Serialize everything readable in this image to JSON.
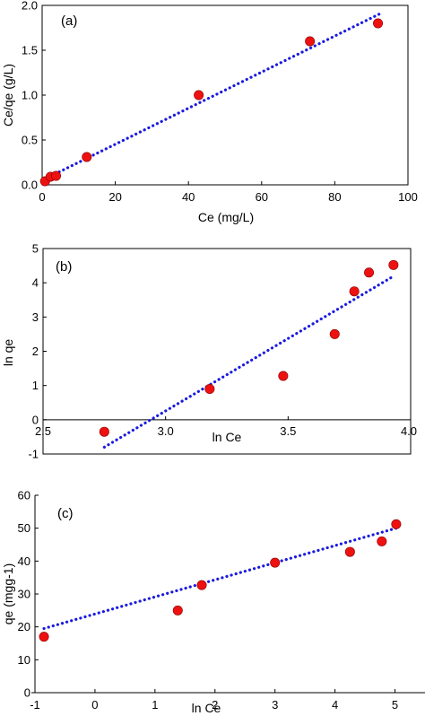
{
  "chart_data": [
    {
      "type": "scatter",
      "panel_label": "(a)",
      "xlabel": "Ce (mg/L)",
      "ylabel": "Ce/qe (g/L)",
      "xlim": [
        0,
        100
      ],
      "ylim": [
        0,
        2.0
      ],
      "xticks": [
        "0",
        "20",
        "40",
        "60",
        "80",
        "100"
      ],
      "yticks": [
        "0.0",
        "0.5",
        "1.0",
        "1.5",
        "2.0"
      ],
      "grid": false,
      "points": [
        {
          "x": 0.8,
          "y": 0.04
        },
        {
          "x": 2.3,
          "y": 0.09
        },
        {
          "x": 3.8,
          "y": 0.1
        },
        {
          "x": 12.2,
          "y": 0.31
        },
        {
          "x": 42.8,
          "y": 1.0
        },
        {
          "x": 73.2,
          "y": 1.6
        },
        {
          "x": 91.8,
          "y": 1.8
        }
      ],
      "fit_line": {
        "x": [
          0,
          93
        ],
        "y": [
          0.05,
          1.92
        ]
      },
      "point_color": "#ee1111",
      "line_color": "#1a1adf"
    },
    {
      "type": "scatter",
      "panel_label": "(b)",
      "xlabel": "ln Ce",
      "ylabel": "ln qe",
      "xlim": [
        2.5,
        4.0
      ],
      "ylim": [
        -1,
        5
      ],
      "xticks": [
        "2.5",
        "3.0",
        "3.5",
        "4.0"
      ],
      "yticks": [
        "-1",
        "0",
        "1",
        "2",
        "3",
        "4",
        "5"
      ],
      "grid": false,
      "points": [
        {
          "x": 2.75,
          "y": -0.35
        },
        {
          "x": 3.18,
          "y": 0.9
        },
        {
          "x": 3.48,
          "y": 1.28
        },
        {
          "x": 3.69,
          "y": 2.5
        },
        {
          "x": 3.77,
          "y": 3.75
        },
        {
          "x": 3.83,
          "y": 4.3
        },
        {
          "x": 3.93,
          "y": 4.52
        }
      ],
      "fit_line": {
        "x": [
          2.75,
          3.92
        ],
        "y": [
          -0.8,
          4.15
        ]
      },
      "point_color": "#ee1111",
      "line_color": "#1a1adf"
    },
    {
      "type": "scatter",
      "panel_label": "(c)",
      "xlabel": "ln Ce",
      "ylabel": "qe (mgg-1)",
      "xlim": [
        -1,
        5.5
      ],
      "ylim": [
        0,
        60
      ],
      "xticks": [
        "-1",
        "0",
        "1",
        "2",
        "3",
        "4",
        "5"
      ],
      "yticks": [
        "0",
        "10",
        "20",
        "30",
        "40",
        "50",
        "60"
      ],
      "grid": false,
      "points": [
        {
          "x": -0.85,
          "y": 17.0
        },
        {
          "x": 1.38,
          "y": 25.0
        },
        {
          "x": 1.78,
          "y": 32.7
        },
        {
          "x": 3.0,
          "y": 39.5
        },
        {
          "x": 4.25,
          "y": 42.8
        },
        {
          "x": 4.78,
          "y": 46.0
        },
        {
          "x": 5.02,
          "y": 51.2
        }
      ],
      "fit_line": {
        "x": [
          -0.85,
          5.02
        ],
        "y": [
          19.5,
          50.0
        ]
      },
      "point_color": "#ee1111",
      "line_color": "#1a1adf"
    }
  ]
}
